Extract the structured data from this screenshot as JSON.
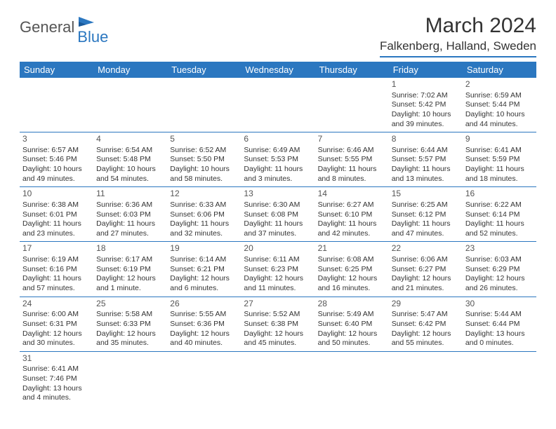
{
  "logo": {
    "text1": "General",
    "text2": "Blue",
    "text1_color": "#555555",
    "text2_color": "#2b77c0"
  },
  "title": "March 2024",
  "location": "Falkenberg, Halland, Sweden",
  "colors": {
    "header_bg": "#2b77c0",
    "header_text": "#ffffff",
    "border": "#2b77c0",
    "text": "#333333",
    "background": "#ffffff"
  },
  "typography": {
    "title_fontsize": 30,
    "location_fontsize": 17,
    "dayheader_fontsize": 13,
    "daynum_fontsize": 12,
    "body_fontsize": 10.5
  },
  "day_headers": [
    "Sunday",
    "Monday",
    "Tuesday",
    "Wednesday",
    "Thursday",
    "Friday",
    "Saturday"
  ],
  "weeks": [
    [
      null,
      null,
      null,
      null,
      null,
      {
        "num": "1",
        "sunrise": "Sunrise: 7:02 AM",
        "sunset": "Sunset: 5:42 PM",
        "daylight": "Daylight: 10 hours and 39 minutes."
      },
      {
        "num": "2",
        "sunrise": "Sunrise: 6:59 AM",
        "sunset": "Sunset: 5:44 PM",
        "daylight": "Daylight: 10 hours and 44 minutes."
      }
    ],
    [
      {
        "num": "3",
        "sunrise": "Sunrise: 6:57 AM",
        "sunset": "Sunset: 5:46 PM",
        "daylight": "Daylight: 10 hours and 49 minutes."
      },
      {
        "num": "4",
        "sunrise": "Sunrise: 6:54 AM",
        "sunset": "Sunset: 5:48 PM",
        "daylight": "Daylight: 10 hours and 54 minutes."
      },
      {
        "num": "5",
        "sunrise": "Sunrise: 6:52 AM",
        "sunset": "Sunset: 5:50 PM",
        "daylight": "Daylight: 10 hours and 58 minutes."
      },
      {
        "num": "6",
        "sunrise": "Sunrise: 6:49 AM",
        "sunset": "Sunset: 5:53 PM",
        "daylight": "Daylight: 11 hours and 3 minutes."
      },
      {
        "num": "7",
        "sunrise": "Sunrise: 6:46 AM",
        "sunset": "Sunset: 5:55 PM",
        "daylight": "Daylight: 11 hours and 8 minutes."
      },
      {
        "num": "8",
        "sunrise": "Sunrise: 6:44 AM",
        "sunset": "Sunset: 5:57 PM",
        "daylight": "Daylight: 11 hours and 13 minutes."
      },
      {
        "num": "9",
        "sunrise": "Sunrise: 6:41 AM",
        "sunset": "Sunset: 5:59 PM",
        "daylight": "Daylight: 11 hours and 18 minutes."
      }
    ],
    [
      {
        "num": "10",
        "sunrise": "Sunrise: 6:38 AM",
        "sunset": "Sunset: 6:01 PM",
        "daylight": "Daylight: 11 hours and 23 minutes."
      },
      {
        "num": "11",
        "sunrise": "Sunrise: 6:36 AM",
        "sunset": "Sunset: 6:03 PM",
        "daylight": "Daylight: 11 hours and 27 minutes."
      },
      {
        "num": "12",
        "sunrise": "Sunrise: 6:33 AM",
        "sunset": "Sunset: 6:06 PM",
        "daylight": "Daylight: 11 hours and 32 minutes."
      },
      {
        "num": "13",
        "sunrise": "Sunrise: 6:30 AM",
        "sunset": "Sunset: 6:08 PM",
        "daylight": "Daylight: 11 hours and 37 minutes."
      },
      {
        "num": "14",
        "sunrise": "Sunrise: 6:27 AM",
        "sunset": "Sunset: 6:10 PM",
        "daylight": "Daylight: 11 hours and 42 minutes."
      },
      {
        "num": "15",
        "sunrise": "Sunrise: 6:25 AM",
        "sunset": "Sunset: 6:12 PM",
        "daylight": "Daylight: 11 hours and 47 minutes."
      },
      {
        "num": "16",
        "sunrise": "Sunrise: 6:22 AM",
        "sunset": "Sunset: 6:14 PM",
        "daylight": "Daylight: 11 hours and 52 minutes."
      }
    ],
    [
      {
        "num": "17",
        "sunrise": "Sunrise: 6:19 AM",
        "sunset": "Sunset: 6:16 PM",
        "daylight": "Daylight: 11 hours and 57 minutes."
      },
      {
        "num": "18",
        "sunrise": "Sunrise: 6:17 AM",
        "sunset": "Sunset: 6:19 PM",
        "daylight": "Daylight: 12 hours and 1 minute."
      },
      {
        "num": "19",
        "sunrise": "Sunrise: 6:14 AM",
        "sunset": "Sunset: 6:21 PM",
        "daylight": "Daylight: 12 hours and 6 minutes."
      },
      {
        "num": "20",
        "sunrise": "Sunrise: 6:11 AM",
        "sunset": "Sunset: 6:23 PM",
        "daylight": "Daylight: 12 hours and 11 minutes."
      },
      {
        "num": "21",
        "sunrise": "Sunrise: 6:08 AM",
        "sunset": "Sunset: 6:25 PM",
        "daylight": "Daylight: 12 hours and 16 minutes."
      },
      {
        "num": "22",
        "sunrise": "Sunrise: 6:06 AM",
        "sunset": "Sunset: 6:27 PM",
        "daylight": "Daylight: 12 hours and 21 minutes."
      },
      {
        "num": "23",
        "sunrise": "Sunrise: 6:03 AM",
        "sunset": "Sunset: 6:29 PM",
        "daylight": "Daylight: 12 hours and 26 minutes."
      }
    ],
    [
      {
        "num": "24",
        "sunrise": "Sunrise: 6:00 AM",
        "sunset": "Sunset: 6:31 PM",
        "daylight": "Daylight: 12 hours and 30 minutes."
      },
      {
        "num": "25",
        "sunrise": "Sunrise: 5:58 AM",
        "sunset": "Sunset: 6:33 PM",
        "daylight": "Daylight: 12 hours and 35 minutes."
      },
      {
        "num": "26",
        "sunrise": "Sunrise: 5:55 AM",
        "sunset": "Sunset: 6:36 PM",
        "daylight": "Daylight: 12 hours and 40 minutes."
      },
      {
        "num": "27",
        "sunrise": "Sunrise: 5:52 AM",
        "sunset": "Sunset: 6:38 PM",
        "daylight": "Daylight: 12 hours and 45 minutes."
      },
      {
        "num": "28",
        "sunrise": "Sunrise: 5:49 AM",
        "sunset": "Sunset: 6:40 PM",
        "daylight": "Daylight: 12 hours and 50 minutes."
      },
      {
        "num": "29",
        "sunrise": "Sunrise: 5:47 AM",
        "sunset": "Sunset: 6:42 PM",
        "daylight": "Daylight: 12 hours and 55 minutes."
      },
      {
        "num": "30",
        "sunrise": "Sunrise: 5:44 AM",
        "sunset": "Sunset: 6:44 PM",
        "daylight": "Daylight: 13 hours and 0 minutes."
      }
    ],
    [
      {
        "num": "31",
        "sunrise": "Sunrise: 6:41 AM",
        "sunset": "Sunset: 7:46 PM",
        "daylight": "Daylight: 13 hours and 4 minutes."
      },
      null,
      null,
      null,
      null,
      null,
      null
    ]
  ]
}
